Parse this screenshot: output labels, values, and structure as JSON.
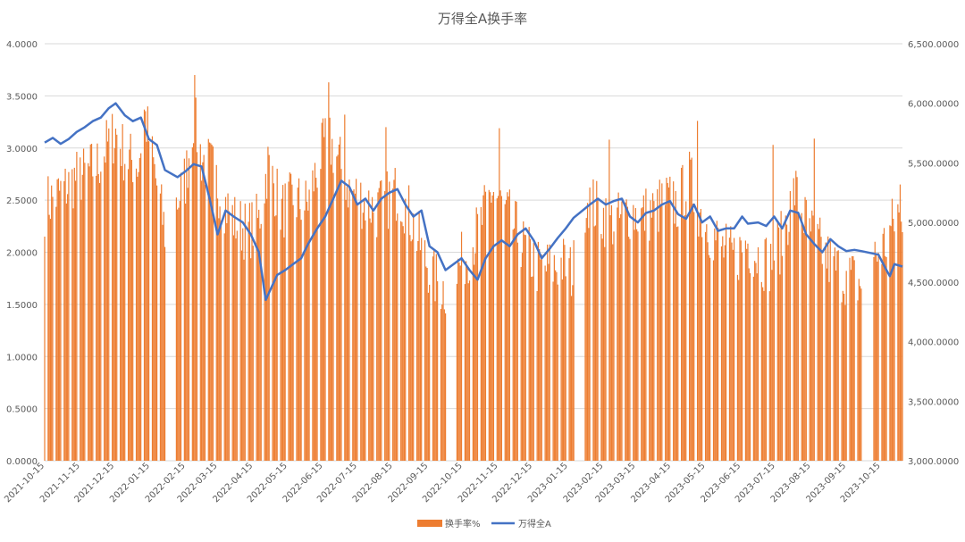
{
  "chart_data": {
    "type": "bar",
    "title": "万得全A换手率",
    "colors": {
      "bar": "#ED7D31",
      "line": "#4472C4",
      "grid": "#D9D9D9",
      "text": "#595959"
    },
    "grid": true,
    "legend_position": "bottom",
    "left_axis": {
      "min": 0,
      "max": 4,
      "step": 0.5,
      "tick_labels": [
        "0.0000",
        "0.5000",
        "1.0000",
        "1.5000",
        "2.0000",
        "2.5000",
        "3.0000",
        "3.5000",
        "4.0000"
      ]
    },
    "right_axis": {
      "min": 3000,
      "max": 6500,
      "step": 500,
      "tick_labels": [
        "3,000.0000",
        "3,500.0000",
        "4,000.0000",
        "4,500.0000",
        "5,000.0000",
        "5,500.0000",
        "6,000.0000",
        "6,500.0000"
      ]
    },
    "x_axis": {
      "start": "2021-10-15",
      "end": "2023-11-03",
      "tick_labels": [
        "2021-10-15",
        "2021-11-15",
        "2021-12-15",
        "2022-01-15",
        "2022-02-15",
        "2022-03-15",
        "2022-04-15",
        "2022-05-15",
        "2022-06-15",
        "2022-07-15",
        "2022-08-15",
        "2022-09-15",
        "2022-10-15",
        "2022-11-15",
        "2022-12-15",
        "2023-01-15",
        "2023-02-15",
        "2023-03-15",
        "2023-04-15",
        "2023-05-15",
        "2023-06-15",
        "2023-07-15",
        "2023-08-15",
        "2023-09-15",
        "2023-10-15"
      ],
      "gaps": [
        [
          "2022-01-29",
          "2022-02-07"
        ],
        [
          "2022-09-30",
          "2022-10-10"
        ],
        [
          "2023-01-20",
          "2023-01-30"
        ],
        [
          "2023-09-28",
          "2023-10-09"
        ]
      ]
    },
    "series": [
      {
        "name": "换手率%",
        "type": "bar",
        "axis": "left",
        "points": [
          [
            "2021-10-15",
            2.45
          ],
          [
            "2021-11-01",
            2.6
          ],
          [
            "2021-11-10",
            2.7
          ],
          [
            "2021-11-20",
            2.75
          ],
          [
            "2021-12-01",
            2.85
          ],
          [
            "2021-12-10",
            3.05
          ],
          [
            "2021-12-16",
            3.15
          ],
          [
            "2021-12-25",
            2.9
          ],
          [
            "2022-01-05",
            2.85
          ],
          [
            "2022-01-10",
            3.35
          ],
          [
            "2022-01-20",
            2.7
          ],
          [
            "2022-01-28",
            2.2
          ],
          [
            "2022-02-08",
            2.5
          ],
          [
            "2022-02-15",
            2.7
          ],
          [
            "2022-02-22",
            3.3
          ],
          [
            "2022-03-01",
            2.9
          ],
          [
            "2022-03-10",
            2.8
          ],
          [
            "2022-03-20",
            2.5
          ],
          [
            "2022-03-30",
            2.3
          ],
          [
            "2022-04-10",
            2.2
          ],
          [
            "2022-04-20",
            2.3
          ],
          [
            "2022-04-28",
            2.85
          ],
          [
            "2022-05-10",
            2.4
          ],
          [
            "2022-05-20",
            2.5
          ],
          [
            "2022-06-01",
            2.45
          ],
          [
            "2022-06-10",
            2.8
          ],
          [
            "2022-06-18",
            3.1
          ],
          [
            "2022-06-28",
            2.9
          ],
          [
            "2022-07-08",
            2.6
          ],
          [
            "2022-07-20",
            2.5
          ],
          [
            "2022-08-01",
            2.4
          ],
          [
            "2022-08-10",
            2.5
          ],
          [
            "2022-08-20",
            2.6
          ],
          [
            "2022-09-01",
            2.3
          ],
          [
            "2022-09-10",
            2.0
          ],
          [
            "2022-09-20",
            1.75
          ],
          [
            "2022-09-29",
            1.65
          ],
          [
            "2022-10-11",
            1.85
          ],
          [
            "2022-10-20",
            2.0
          ],
          [
            "2022-11-01",
            2.3
          ],
          [
            "2022-11-10",
            2.6
          ],
          [
            "2022-11-20",
            2.4
          ],
          [
            "2022-12-01",
            2.2
          ],
          [
            "2022-12-10",
            2.0
          ],
          [
            "2022-12-20",
            1.85
          ],
          [
            "2023-01-01",
            1.85
          ],
          [
            "2023-01-10",
            1.9
          ],
          [
            "2023-01-19",
            1.8
          ],
          [
            "2023-01-31",
            2.55
          ],
          [
            "2023-02-10",
            2.4
          ],
          [
            "2023-02-20",
            2.3
          ],
          [
            "2023-03-01",
            2.3
          ],
          [
            "2023-03-10",
            2.4
          ],
          [
            "2023-03-20",
            2.35
          ],
          [
            "2023-04-01",
            2.4
          ],
          [
            "2023-04-10",
            2.5
          ],
          [
            "2023-04-20",
            2.45
          ],
          [
            "2023-05-01",
            2.7
          ],
          [
            "2023-05-10",
            2.4
          ],
          [
            "2023-05-20",
            2.2
          ],
          [
            "2023-06-01",
            2.0
          ],
          [
            "2023-06-10",
            1.95
          ],
          [
            "2023-06-20",
            2.1
          ],
          [
            "2023-07-01",
            1.95
          ],
          [
            "2023-07-10",
            1.9
          ],
          [
            "2023-07-20",
            2.1
          ],
          [
            "2023-08-01",
            2.6
          ],
          [
            "2023-08-10",
            2.3
          ],
          [
            "2023-08-20",
            2.1
          ],
          [
            "2023-09-01",
            1.9
          ],
          [
            "2023-09-10",
            1.8
          ],
          [
            "2023-09-20",
            1.75
          ],
          [
            "2023-09-27",
            1.7
          ],
          [
            "2023-10-10",
            1.95
          ],
          [
            "2023-10-20",
            2.1
          ],
          [
            "2023-10-30",
            2.4
          ],
          [
            "2023-11-03",
            2.15
          ]
        ],
        "spikes": [
          [
            "2022-02-23",
            3.7
          ],
          [
            "2022-06-20",
            3.63
          ],
          [
            "2022-07-04",
            3.32
          ],
          [
            "2022-08-09",
            3.2
          ],
          [
            "2022-11-16",
            3.19
          ],
          [
            "2023-02-20",
            3.08
          ],
          [
            "2023-05-08",
            3.26
          ],
          [
            "2023-07-13",
            3.03
          ],
          [
            "2023-08-18",
            3.09
          ],
          [
            "2023-11-01",
            2.65
          ]
        ]
      },
      {
        "name": "万得全A",
        "type": "line",
        "axis": "right",
        "points": [
          [
            "2021-10-15",
            5670
          ],
          [
            "2021-10-22",
            5710
          ],
          [
            "2021-10-29",
            5660
          ],
          [
            "2021-11-05",
            5700
          ],
          [
            "2021-11-12",
            5760
          ],
          [
            "2021-11-19",
            5800
          ],
          [
            "2021-11-26",
            5850
          ],
          [
            "2021-12-03",
            5880
          ],
          [
            "2021-12-10",
            5960
          ],
          [
            "2021-12-16",
            6000
          ],
          [
            "2021-12-24",
            5900
          ],
          [
            "2021-12-31",
            5850
          ],
          [
            "2022-01-07",
            5880
          ],
          [
            "2022-01-14",
            5700
          ],
          [
            "2022-01-21",
            5650
          ],
          [
            "2022-01-28",
            5440
          ],
          [
            "2022-02-08",
            5380
          ],
          [
            "2022-02-15",
            5430
          ],
          [
            "2022-02-22",
            5490
          ],
          [
            "2022-03-01",
            5470
          ],
          [
            "2022-03-08",
            5200
          ],
          [
            "2022-03-15",
            4900
          ],
          [
            "2022-03-22",
            5100
          ],
          [
            "2022-03-29",
            5050
          ],
          [
            "2022-04-06",
            5000
          ],
          [
            "2022-04-13",
            4900
          ],
          [
            "2022-04-20",
            4750
          ],
          [
            "2022-04-26",
            4350
          ],
          [
            "2022-05-06",
            4560
          ],
          [
            "2022-05-13",
            4600
          ],
          [
            "2022-05-20",
            4650
          ],
          [
            "2022-05-27",
            4700
          ],
          [
            "2022-06-02",
            4820
          ],
          [
            "2022-06-10",
            4950
          ],
          [
            "2022-06-17",
            5050
          ],
          [
            "2022-06-24",
            5200
          ],
          [
            "2022-07-01",
            5350
          ],
          [
            "2022-07-08",
            5300
          ],
          [
            "2022-07-15",
            5150
          ],
          [
            "2022-07-22",
            5200
          ],
          [
            "2022-07-29",
            5100
          ],
          [
            "2022-08-05",
            5200
          ],
          [
            "2022-08-12",
            5250
          ],
          [
            "2022-08-19",
            5280
          ],
          [
            "2022-08-26",
            5150
          ],
          [
            "2022-09-02",
            5050
          ],
          [
            "2022-09-09",
            5100
          ],
          [
            "2022-09-16",
            4800
          ],
          [
            "2022-09-23",
            4750
          ],
          [
            "2022-09-30",
            4600
          ],
          [
            "2022-10-14",
            4700
          ],
          [
            "2022-10-21",
            4600
          ],
          [
            "2022-10-28",
            4520
          ],
          [
            "2022-11-04",
            4700
          ],
          [
            "2022-11-11",
            4800
          ],
          [
            "2022-11-18",
            4850
          ],
          [
            "2022-11-25",
            4800
          ],
          [
            "2022-12-02",
            4900
          ],
          [
            "2022-12-09",
            4950
          ],
          [
            "2022-12-16",
            4850
          ],
          [
            "2022-12-23",
            4700
          ],
          [
            "2022-12-30",
            4780
          ],
          [
            "2023-01-06",
            4870
          ],
          [
            "2023-01-13",
            4950
          ],
          [
            "2023-01-20",
            5040
          ],
          [
            "2023-02-03",
            5150
          ],
          [
            "2023-02-10",
            5200
          ],
          [
            "2023-02-17",
            5150
          ],
          [
            "2023-02-24",
            5180
          ],
          [
            "2023-03-03",
            5200
          ],
          [
            "2023-03-10",
            5050
          ],
          [
            "2023-03-17",
            5000
          ],
          [
            "2023-03-24",
            5080
          ],
          [
            "2023-03-31",
            5100
          ],
          [
            "2023-04-07",
            5150
          ],
          [
            "2023-04-14",
            5180
          ],
          [
            "2023-04-21",
            5070
          ],
          [
            "2023-04-28",
            5030
          ],
          [
            "2023-05-05",
            5150
          ],
          [
            "2023-05-12",
            5000
          ],
          [
            "2023-05-19",
            5050
          ],
          [
            "2023-05-26",
            4930
          ],
          [
            "2023-06-02",
            4950
          ],
          [
            "2023-06-09",
            4950
          ],
          [
            "2023-06-16",
            5050
          ],
          [
            "2023-06-21",
            4990
          ],
          [
            "2023-06-30",
            5000
          ],
          [
            "2023-07-07",
            4970
          ],
          [
            "2023-07-14",
            5050
          ],
          [
            "2023-07-21",
            4950
          ],
          [
            "2023-07-28",
            5100
          ],
          [
            "2023-08-04",
            5080
          ],
          [
            "2023-08-11",
            4900
          ],
          [
            "2023-08-18",
            4820
          ],
          [
            "2023-08-25",
            4750
          ],
          [
            "2023-09-01",
            4860
          ],
          [
            "2023-09-08",
            4800
          ],
          [
            "2023-09-15",
            4760
          ],
          [
            "2023-09-22",
            4770
          ],
          [
            "2023-09-28",
            4760
          ],
          [
            "2023-10-13",
            4730
          ],
          [
            "2023-10-20",
            4600
          ],
          [
            "2023-10-23",
            4550
          ],
          [
            "2023-10-27",
            4650
          ],
          [
            "2023-11-03",
            4630
          ]
        ]
      }
    ]
  }
}
